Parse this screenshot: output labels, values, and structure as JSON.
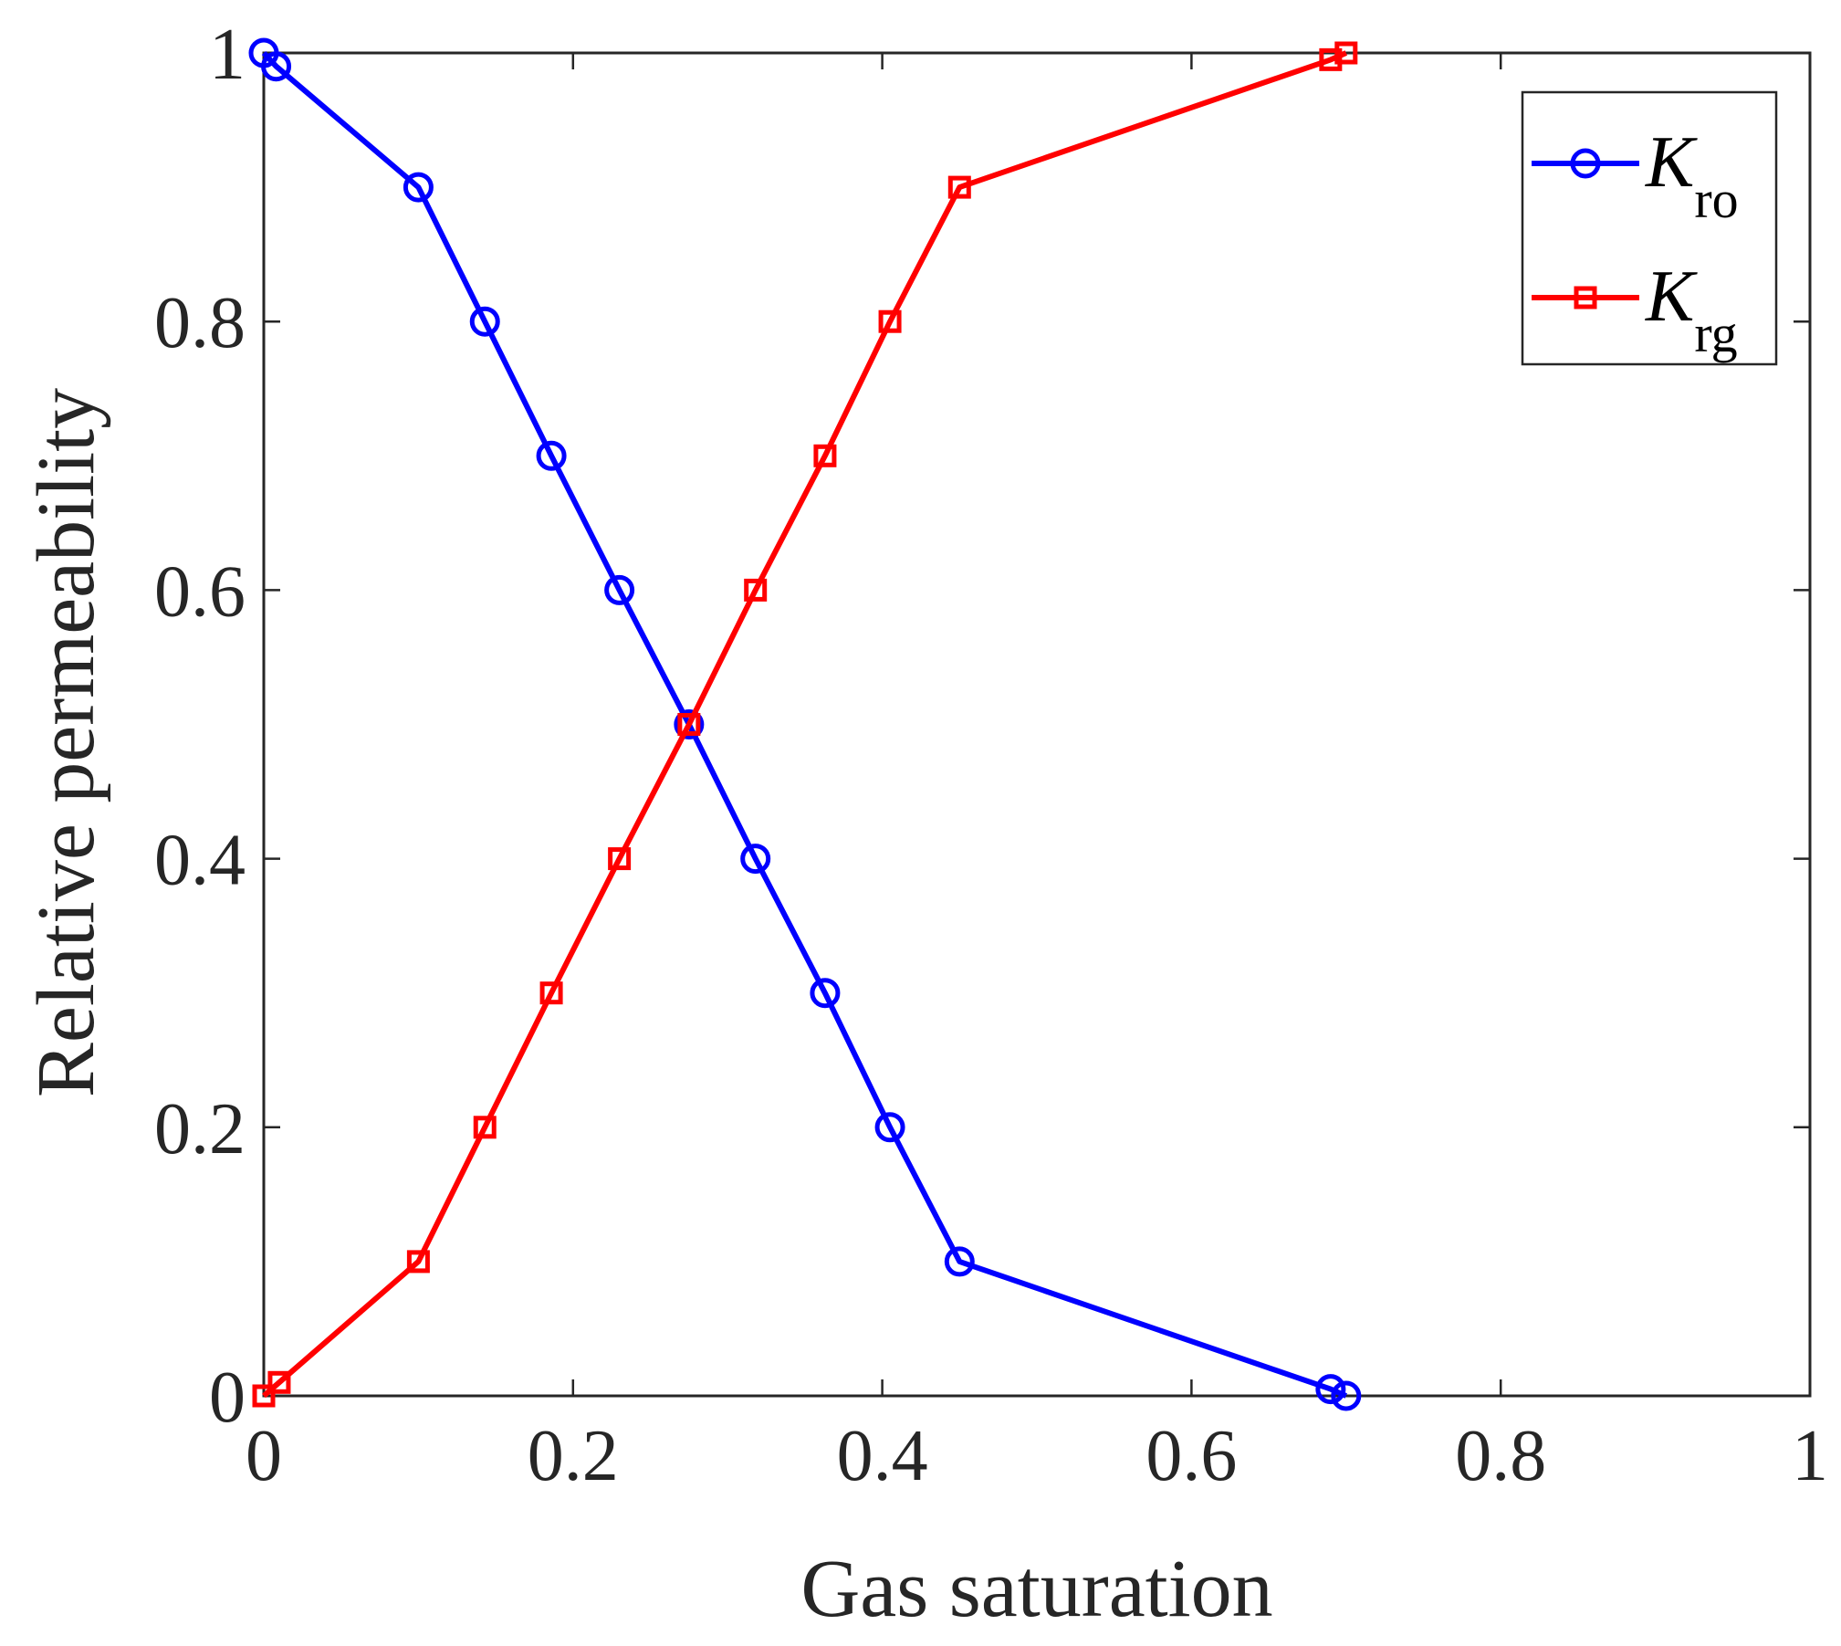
{
  "chart_data": {
    "type": "line",
    "title": "",
    "xlabel": "Gas saturation",
    "ylabel": "Relative permeability",
    "xlim": [
      0,
      1
    ],
    "ylim": [
      0,
      1
    ],
    "xticks": [
      0,
      0.2,
      0.4,
      0.6,
      0.8,
      1
    ],
    "yticks": [
      0,
      0.2,
      0.4,
      0.6,
      0.8,
      1
    ],
    "xtick_labels": [
      "0",
      "0.2",
      "0.4",
      "0.6",
      "0.8",
      "1"
    ],
    "ytick_labels": [
      "0",
      "0.2",
      "0.4",
      "0.6",
      "0.8",
      "1"
    ],
    "grid": false,
    "legend_position": "top-right",
    "series": [
      {
        "name": "Kro",
        "label_main": "K",
        "label_sub": "ro",
        "color": "#0000ff",
        "marker": "circle",
        "x": [
          0,
          0.008,
          0.1,
          0.143,
          0.186,
          0.23,
          0.275,
          0.318,
          0.363,
          0.405,
          0.45,
          0.69,
          0.7
        ],
        "y": [
          1,
          0.99,
          0.9,
          0.8,
          0.7,
          0.6,
          0.5,
          0.4,
          0.3,
          0.2,
          0.1,
          0.005,
          0
        ]
      },
      {
        "name": "Krg",
        "label_main": "K",
        "label_sub": "rg",
        "color": "#ff0000",
        "marker": "square",
        "x": [
          0,
          0.01,
          0.1,
          0.143,
          0.186,
          0.23,
          0.275,
          0.318,
          0.363,
          0.405,
          0.45,
          0.69,
          0.7
        ],
        "y": [
          0,
          0.01,
          0.1,
          0.2,
          0.3,
          0.4,
          0.5,
          0.6,
          0.7,
          0.8,
          0.9,
          0.995,
          1
        ]
      }
    ]
  }
}
